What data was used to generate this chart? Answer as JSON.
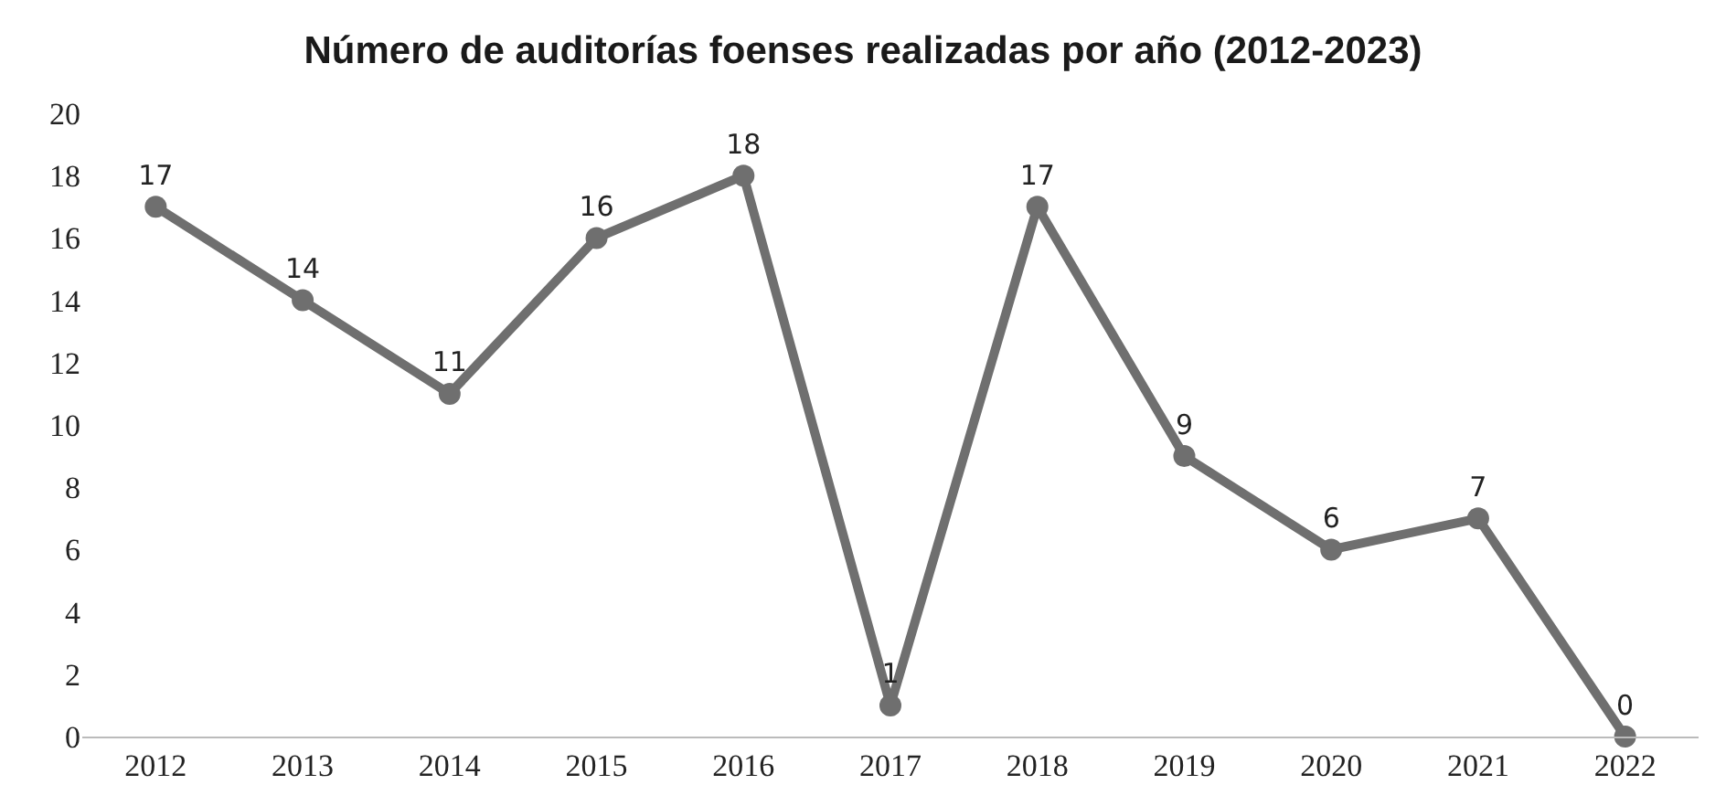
{
  "chart_data": {
    "type": "line",
    "title": "Número de auditorías foenses realizadas por año (2012-2023)",
    "categories": [
      "2012",
      "2013",
      "2014",
      "2015",
      "2016",
      "2017",
      "2018",
      "2019",
      "2020",
      "2021",
      "2022"
    ],
    "series": [
      {
        "color": "#6f6f6f",
        "values": [
          17,
          14,
          11,
          16,
          18,
          1,
          17,
          9,
          6,
          7,
          0
        ]
      }
    ],
    "ylim": [
      0,
      20
    ],
    "yticks": [
      0,
      2,
      4,
      6,
      8,
      10,
      12,
      14,
      16,
      18,
      20
    ],
    "data_labels": true,
    "marker": "circle",
    "line_style": "solid"
  }
}
